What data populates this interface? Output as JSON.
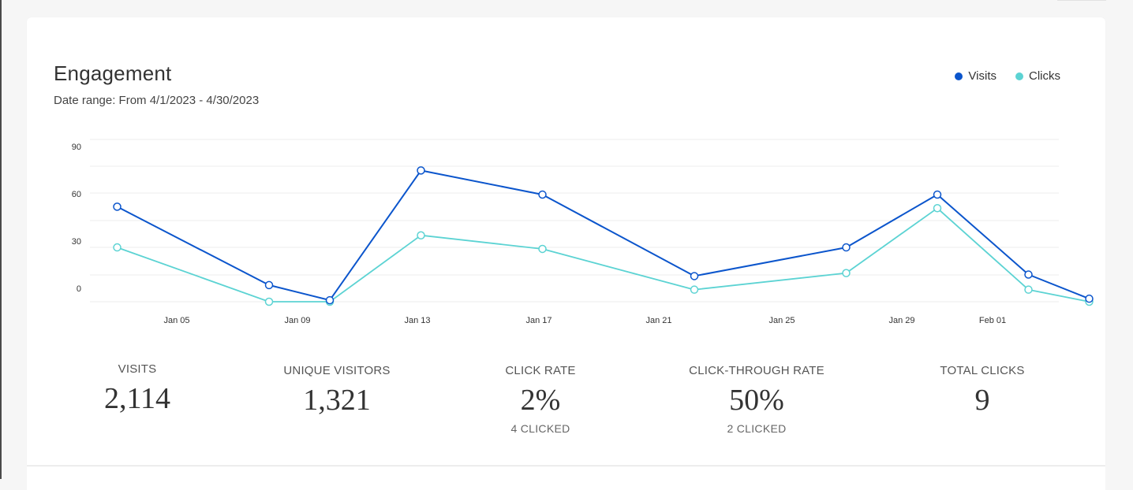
{
  "header": {
    "title": "Engagement",
    "date_range": "Date range: From 4/1/2023 - 4/30/2023"
  },
  "legend": [
    {
      "label": "Visits",
      "color": "#0b55cc"
    },
    {
      "label": "Clicks",
      "color": "#5cd3d3"
    }
  ],
  "chart_data": {
    "type": "line",
    "title": "Engagement",
    "xlabel": "",
    "ylabel": "",
    "ylim": [
      0,
      108
    ],
    "grid": true,
    "legend_position": "top-right",
    "y_ticks": [
      0,
      30,
      60,
      90
    ],
    "x_ticks": [
      "Jan 05",
      "Jan 09",
      "Jan 13",
      "Jan 17",
      "Jan 21",
      "Jan 25",
      "Jan 29",
      "Feb 01"
    ],
    "series": [
      {
        "name": "Visits",
        "color": "#0b55cc",
        "points": [
          {
            "x": "2024-01-02",
            "y": 63
          },
          {
            "x": "2024-01-07",
            "y": 11
          },
          {
            "x": "2024-01-09",
            "y": 1
          },
          {
            "x": "2024-01-12",
            "y": 87
          },
          {
            "x": "2024-01-16",
            "y": 71
          },
          {
            "x": "2024-01-21",
            "y": 17
          },
          {
            "x": "2024-01-26",
            "y": 36
          },
          {
            "x": "2024-01-29",
            "y": 71
          },
          {
            "x": "2024-02-01",
            "y": 18
          },
          {
            "x": "2024-02-03",
            "y": 2
          }
        ]
      },
      {
        "name": "Clicks",
        "color": "#5cd3d3",
        "points": [
          {
            "x": "2024-01-02",
            "y": 36
          },
          {
            "x": "2024-01-07",
            "y": 0
          },
          {
            "x": "2024-01-09",
            "y": 0
          },
          {
            "x": "2024-01-12",
            "y": 44
          },
          {
            "x": "2024-01-16",
            "y": 35
          },
          {
            "x": "2024-01-21",
            "y": 8
          },
          {
            "x": "2024-01-26",
            "y": 19
          },
          {
            "x": "2024-01-29",
            "y": 62
          },
          {
            "x": "2024-02-01",
            "y": 8
          },
          {
            "x": "2024-02-03",
            "y": 0
          }
        ]
      }
    ]
  },
  "stats": [
    {
      "label": "VISITS",
      "value": "2,114",
      "sub": ""
    },
    {
      "label": "UNIQUE VISITORS",
      "value": "1,321",
      "sub": ""
    },
    {
      "label": "CLICK RATE",
      "value": "2%",
      "sub": "4 CLICKED"
    },
    {
      "label": "CLICK-THROUGH RATE",
      "value": "50%",
      "sub": "2 CLICKED"
    },
    {
      "label": "TOTAL CLICKS",
      "value": "9",
      "sub": ""
    }
  ]
}
